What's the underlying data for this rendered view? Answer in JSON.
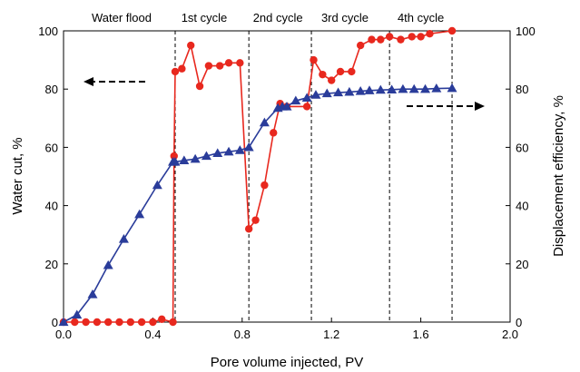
{
  "chart_data": {
    "type": "line",
    "xlabel": "Pore volume injected,  PV",
    "ylabel_left": "Water cut, %",
    "ylabel_right": "Displacement efficiency, %",
    "xlim": [
      0,
      2.0
    ],
    "ylim_left": [
      0,
      100
    ],
    "ylim_right": [
      0,
      100
    ],
    "x_ticks": [
      "0.0",
      "0.4",
      "0.8",
      "1.2",
      "1.6",
      "2.0"
    ],
    "y_ticks_left": [
      "0",
      "20",
      "40",
      "60",
      "80",
      "100"
    ],
    "y_ticks_right": [
      "0",
      "20",
      "40",
      "60",
      "80",
      "100"
    ],
    "grid": false,
    "stage_boundaries": [
      0.5,
      0.83,
      1.11,
      1.46,
      1.74
    ],
    "stages": [
      {
        "label": "Water flood",
        "x_center": 0.26
      },
      {
        "label": "1st cycle",
        "x_center": 0.63
      },
      {
        "label": "2nd cycle",
        "x_center": 0.96
      },
      {
        "label": "3rd cycle",
        "x_center": 1.26
      },
      {
        "label": "4th cycle",
        "x_center": 1.6
      }
    ],
    "series": [
      {
        "axis": "left",
        "color": "#e8281e",
        "marker": "circle",
        "x": [
          0.0,
          0.05,
          0.1,
          0.15,
          0.2,
          0.25,
          0.3,
          0.35,
          0.4,
          0.44,
          0.49,
          0.495,
          0.5,
          0.53,
          0.57,
          0.61,
          0.65,
          0.7,
          0.74,
          0.79,
          0.83,
          0.86,
          0.9,
          0.94,
          0.97,
          1.0,
          1.09,
          1.12,
          1.16,
          1.2,
          1.24,
          1.29,
          1.33,
          1.38,
          1.42,
          1.46,
          1.51,
          1.56,
          1.6,
          1.64,
          1.74
        ],
        "values": [
          0,
          0,
          0,
          0,
          0,
          0,
          0,
          0,
          0,
          1,
          0,
          57,
          86,
          87,
          95,
          81,
          88,
          88,
          89,
          89,
          32,
          35,
          47,
          65,
          75,
          74,
          74,
          90,
          85,
          83,
          86,
          86,
          95,
          97,
          97,
          98,
          97,
          98,
          98,
          99,
          100
        ]
      },
      {
        "axis": "right",
        "color": "#2a3c9a",
        "marker": "triangle",
        "x": [
          0.0,
          0.06,
          0.13,
          0.2,
          0.27,
          0.34,
          0.42,
          0.49,
          0.5,
          0.54,
          0.59,
          0.64,
          0.69,
          0.74,
          0.79,
          0.83,
          0.9,
          0.96,
          0.98,
          1.0,
          1.04,
          1.09,
          1.13,
          1.18,
          1.23,
          1.28,
          1.33,
          1.37,
          1.42,
          1.47,
          1.52,
          1.57,
          1.62,
          1.67,
          1.74
        ],
        "values": [
          0,
          2.5,
          9.5,
          19.5,
          28.5,
          37,
          47,
          55,
          55,
          55.5,
          56,
          57,
          58,
          58.5,
          59,
          60,
          68.5,
          73.5,
          74,
          74,
          76,
          77,
          78,
          78.5,
          78.8,
          79,
          79.3,
          79.5,
          79.7,
          79.8,
          80,
          80,
          80,
          80.2,
          80.3
        ]
      }
    ]
  }
}
